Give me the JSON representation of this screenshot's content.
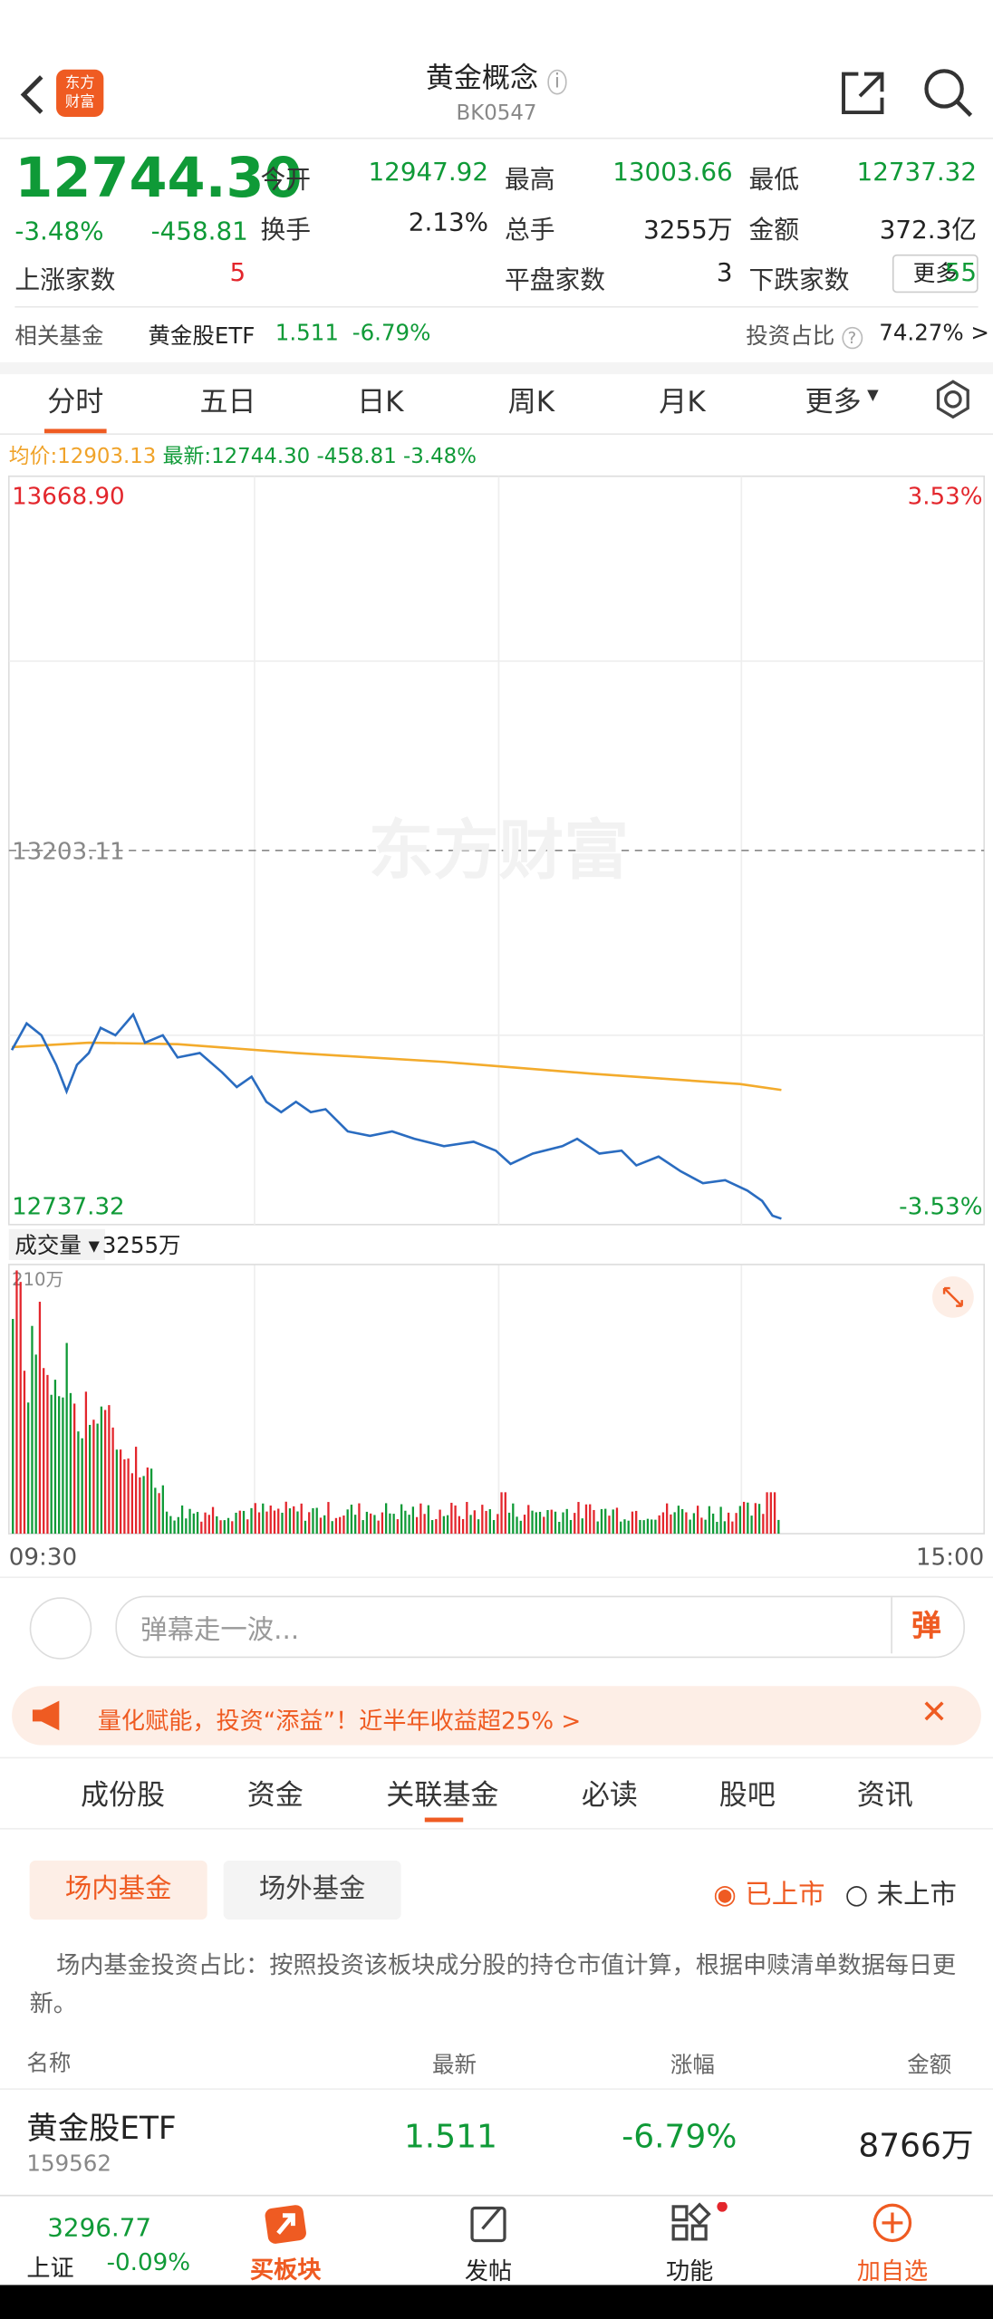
{
  "header": {
    "logo": [
      "东方",
      "财富"
    ],
    "title": "黄金概念",
    "code": "BK0547"
  },
  "quote": {
    "price": "12744.30",
    "change_pct": "-3.48%",
    "change": "-458.81",
    "stats": [
      {
        "label": "今开",
        "value": "12947.92"
      },
      {
        "label": "最高",
        "value": "13003.66"
      },
      {
        "label": "最低",
        "value": "12737.32"
      },
      {
        "label": "换手",
        "value": "2.13%"
      },
      {
        "label": "总手",
        "value": "3255万"
      },
      {
        "label": "金额",
        "value": "372.3亿"
      },
      {
        "label": "上涨家数",
        "value": "5"
      },
      {
        "label": "平盘家数",
        "value": "3"
      },
      {
        "label": "下跌家数",
        "value": "55"
      }
    ],
    "more": "更多"
  },
  "related_fund": {
    "label": "相关基金",
    "name": "黄金股ETF",
    "price": "1.511",
    "pct": "-6.79%",
    "ratio_label": "投资占比",
    "ratio": "74.27% >"
  },
  "chart_tabs": [
    "分时",
    "五日",
    "日K",
    "周K",
    "月K",
    "更多"
  ],
  "legend": {
    "avg_label": "均价:",
    "avg": "12903.13",
    "latest_label": "最新:",
    "latest": "12744.30",
    "change": "-458.81",
    "pct": "-3.48%"
  },
  "chart": {
    "top_left": "13668.90",
    "top_right": "3.53%",
    "mid": "13203.11",
    "bottom_left": "12737.32",
    "bottom_right": "-3.53%",
    "watermark": "东方财富"
  },
  "volume": {
    "label": "成交量",
    "total": "3255万",
    "max": "210万",
    "time_start": "09:30",
    "time_end": "15:00"
  },
  "comment": {
    "placeholder": "弹幕走一波...",
    "button": "弹"
  },
  "banner": "量化赋能，投资“添益”！近半年收益超25% >",
  "section_tabs": [
    "成份股",
    "资金",
    "关联基金",
    "必读",
    "股吧",
    "资讯"
  ],
  "fund_tabs": [
    "场内基金",
    "场外基金"
  ],
  "filters": [
    "已上市",
    "未上市"
  ],
  "note": "场内基金投资占比：按照投资该板块成分股的持仓市值计算，根据申赎清单数据每日更新。",
  "table": {
    "headers": [
      "名称",
      "最新",
      "涨幅",
      "金额"
    ],
    "rows": [
      {
        "name": "黄金股ETF",
        "code": "159562",
        "latest": "1.511",
        "pct": "-6.79%",
        "amount": "8766万"
      }
    ]
  },
  "bottom_bar": {
    "index_value": "3296.77",
    "index_name": "上证",
    "index_pct": "-0.09%",
    "nav": [
      "买板块",
      "发帖",
      "功能",
      "加自选"
    ]
  }
}
